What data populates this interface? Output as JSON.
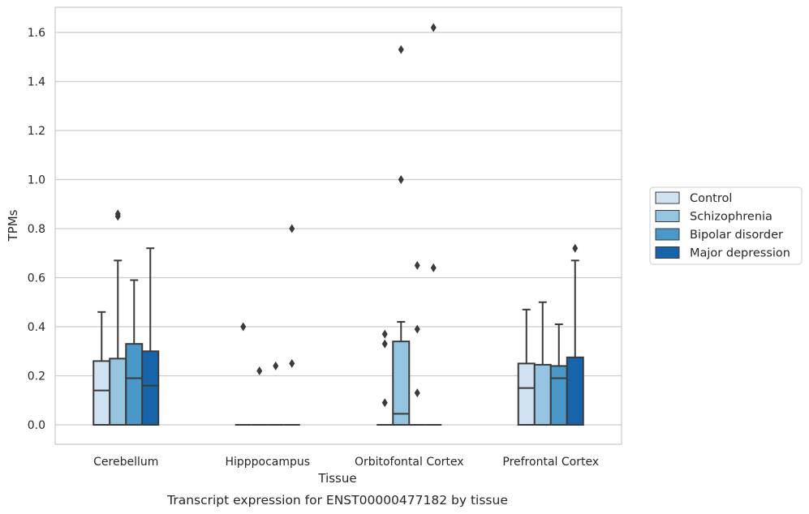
{
  "chart_data": {
    "type": "box",
    "caption": "Transcript expression for ENST00000477182 by tissue",
    "xlabel": "Tissue",
    "ylabel": "TPMs",
    "ylim": [
      -0.08,
      1.7
    ],
    "yticks": [
      0.0,
      0.2,
      0.4,
      0.6,
      0.8,
      1.0,
      1.2,
      1.4,
      1.6
    ],
    "ytick_labels": [
      "0.0",
      "0.2",
      "0.4",
      "0.6",
      "0.8",
      "1.0",
      "1.2",
      "1.4",
      "1.6"
    ],
    "grid": "horizontal",
    "legend_position": "right",
    "categories": [
      "Cerebellum",
      "Hipppocampus",
      "Orbitofontal Cortex",
      "Prefrontal Cortex"
    ],
    "series": [
      {
        "name": "Control",
        "color": "#d0e1f2",
        "boxes": [
          {
            "q1": 0.0,
            "median": 0.14,
            "q3": 0.26,
            "whisker_low": 0.0,
            "whisker_high": 0.46,
            "outliers": []
          },
          {
            "q1": 0.0,
            "median": 0.0,
            "q3": 0.0,
            "whisker_low": 0.0,
            "whisker_high": 0.0,
            "outliers": [
              0.4
            ]
          },
          {
            "q1": 0.0,
            "median": 0.0,
            "q3": 0.0,
            "whisker_low": 0.0,
            "whisker_high": 0.0,
            "outliers": [
              0.09,
              0.33,
              0.37
            ]
          },
          {
            "q1": 0.0,
            "median": 0.15,
            "q3": 0.25,
            "whisker_low": 0.0,
            "whisker_high": 0.47,
            "outliers": []
          }
        ]
      },
      {
        "name": "Schizophrenia",
        "color": "#94c4df",
        "boxes": [
          {
            "q1": 0.0,
            "median": 0.0,
            "q3": 0.27,
            "whisker_low": 0.0,
            "whisker_high": 0.67,
            "outliers": [
              0.85,
              0.86
            ]
          },
          {
            "q1": 0.0,
            "median": 0.0,
            "q3": 0.0,
            "whisker_low": 0.0,
            "whisker_high": 0.0,
            "outliers": [
              0.22
            ]
          },
          {
            "q1": 0.0,
            "median": 0.045,
            "q3": 0.34,
            "whisker_low": 0.0,
            "whisker_high": 0.42,
            "outliers": [
              1.0,
              1.53
            ]
          },
          {
            "q1": 0.0,
            "median": 0.0,
            "q3": 0.245,
            "whisker_low": 0.0,
            "whisker_high": 0.5,
            "outliers": []
          }
        ]
      },
      {
        "name": "Bipolar disorder",
        "color": "#4a98c9",
        "boxes": [
          {
            "q1": 0.0,
            "median": 0.19,
            "q3": 0.33,
            "whisker_low": 0.0,
            "whisker_high": 0.59,
            "outliers": []
          },
          {
            "q1": 0.0,
            "median": 0.0,
            "q3": 0.0,
            "whisker_low": 0.0,
            "whisker_high": 0.0,
            "outliers": [
              0.24
            ]
          },
          {
            "q1": 0.0,
            "median": 0.0,
            "q3": 0.0,
            "whisker_low": 0.0,
            "whisker_high": 0.0,
            "outliers": [
              0.13,
              0.39,
              0.65
            ]
          },
          {
            "q1": 0.0,
            "median": 0.19,
            "q3": 0.24,
            "whisker_low": 0.0,
            "whisker_high": 0.41,
            "outliers": []
          }
        ]
      },
      {
        "name": "Major depression",
        "color": "#1764ab",
        "boxes": [
          {
            "q1": 0.0,
            "median": 0.16,
            "q3": 0.3,
            "whisker_low": 0.0,
            "whisker_high": 0.72,
            "outliers": []
          },
          {
            "q1": 0.0,
            "median": 0.0,
            "q3": 0.0,
            "whisker_low": 0.0,
            "whisker_high": 0.0,
            "outliers": [
              0.25,
              0.8
            ]
          },
          {
            "q1": 0.0,
            "median": 0.0,
            "q3": 0.0,
            "whisker_low": 0.0,
            "whisker_high": 0.0,
            "outliers": [
              0.64,
              1.62
            ]
          },
          {
            "q1": 0.0,
            "median": 0.0,
            "q3": 0.275,
            "whisker_low": 0.0,
            "whisker_high": 0.67,
            "outliers": [
              0.72
            ]
          }
        ]
      }
    ]
  }
}
